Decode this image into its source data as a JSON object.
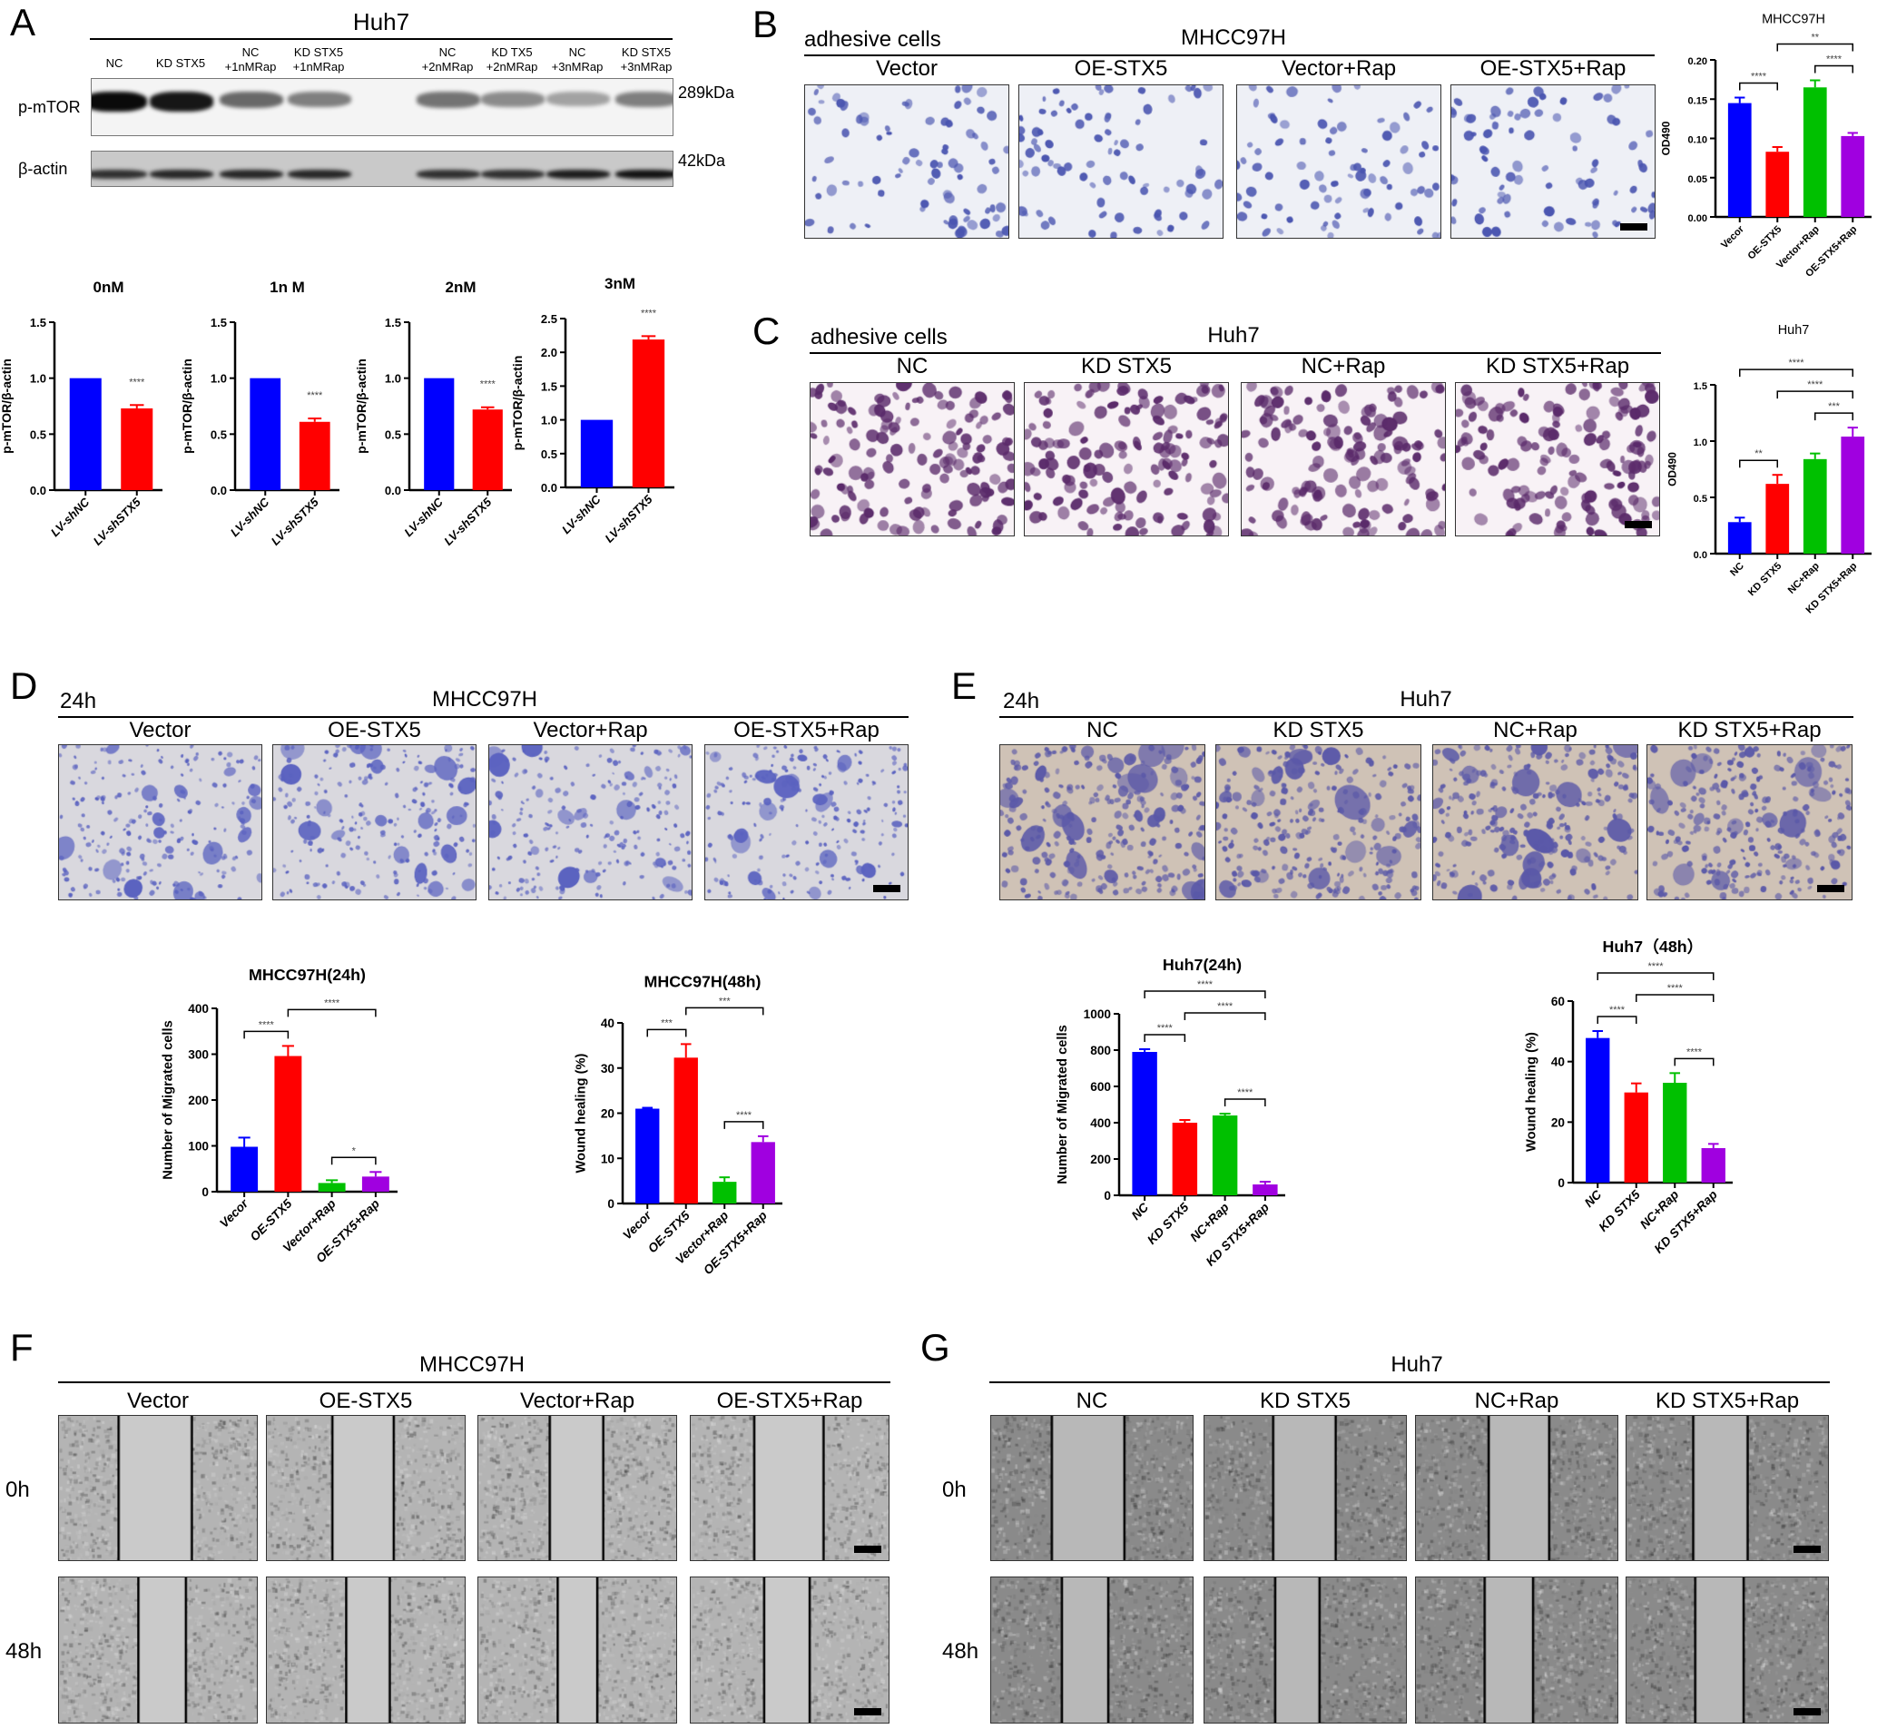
{
  "panels": {
    "A": {
      "label": "A",
      "title": "Huh7",
      "lanes": [
        "NC",
        "KD STX5",
        "NC\n+1nMRap",
        "KD STX5\n+1nMRap",
        "NC\n+2nMRap",
        "KD TX5\n+2nMRap",
        "NC\n+3nMRap",
        "KD STX5\n+3nMRap"
      ],
      "rows": [
        {
          "name": "p-mTOR",
          "size": "289kDa"
        },
        {
          "name": "β-actin",
          "size": "42kDa"
        }
      ]
    },
    "B": {
      "label": "B",
      "corner": "adhesive cells",
      "title": "MHCC97H",
      "columns": [
        "Vector",
        "OE-STX5",
        "Vector+Rap",
        "OE-STX5+Rap"
      ]
    },
    "C": {
      "label": "C",
      "corner": "adhesive cells",
      "title": "Huh7",
      "columns": [
        "NC",
        "KD STX5",
        "NC+Rap",
        "KD STX5+Rap"
      ]
    },
    "D": {
      "label": "D",
      "corner": "24h",
      "title": "MHCC97H",
      "columns": [
        "Vector",
        "OE-STX5",
        "Vector+Rap",
        "OE-STX5+Rap"
      ]
    },
    "E": {
      "label": "E",
      "corner": "24h",
      "title": "Huh7",
      "columns": [
        "NC",
        "KD STX5",
        "NC+Rap",
        "KD STX5+Rap"
      ]
    },
    "F": {
      "label": "F",
      "title": "MHCC97H",
      "columns": [
        "Vector",
        "OE-STX5",
        "Vector+Rap",
        "OE-STX5+Rap"
      ],
      "rows": [
        "0h",
        "48h"
      ]
    },
    "G": {
      "label": "G",
      "title": "Huh7",
      "columns": [
        "NC",
        "KD STX5",
        "NC+Rap",
        "KD STX5+Rap"
      ],
      "rows": [
        "0h",
        "48h"
      ]
    }
  },
  "colors": {
    "blue": "#0000ff",
    "red": "#ff0000",
    "green": "#00c000",
    "purple": "#a000e0"
  },
  "chart_data": [
    {
      "id": "A-0nM",
      "type": "bar",
      "title": "0nM",
      "ylabel": "p-mTOR/β-actin",
      "categories": [
        "LV-shNC",
        "LV-shSTX5"
      ],
      "values": [
        1.0,
        0.73
      ],
      "errors": [
        0,
        0.03
      ],
      "ylim": [
        0,
        1.5
      ],
      "yticks": [
        "0.0",
        "0.5",
        "1.0",
        "1.5"
      ],
      "colors": [
        "#0000ff",
        "#ff0000"
      ],
      "significance": [
        {
          "bar": 1,
          "label": "****"
        }
      ],
      "comparisons": []
    },
    {
      "id": "A-1nM",
      "type": "bar",
      "title": "1n  M",
      "ylabel": "p-mTOR/β-actin",
      "categories": [
        "LV-shNC",
        "LV-shSTX5"
      ],
      "values": [
        1.0,
        0.61
      ],
      "errors": [
        0,
        0.03
      ],
      "ylim": [
        0,
        1.5
      ],
      "yticks": [
        "0.0",
        "0.5",
        "1.0",
        "1.5"
      ],
      "colors": [
        "#0000ff",
        "#ff0000"
      ],
      "significance": [
        {
          "bar": 1,
          "label": "****"
        }
      ],
      "comparisons": []
    },
    {
      "id": "A-2nM",
      "type": "bar",
      "title": "2nM",
      "ylabel": "p-mTOR/β-actin",
      "categories": [
        "LV-shNC",
        "LV-shSTX5"
      ],
      "values": [
        1.0,
        0.72
      ],
      "errors": [
        0,
        0.02
      ],
      "ylim": [
        0,
        1.5
      ],
      "yticks": [
        "0.0",
        "0.5",
        "1.0",
        "1.5"
      ],
      "colors": [
        "#0000ff",
        "#ff0000"
      ],
      "significance": [
        {
          "bar": 1,
          "label": "****"
        }
      ],
      "comparisons": []
    },
    {
      "id": "A-3nM",
      "type": "bar",
      "title": "3nM",
      "ylabel": "p-mTOR/β-actin",
      "categories": [
        "LV-shNC",
        "LV-shSTX5"
      ],
      "values": [
        1.0,
        2.19
      ],
      "errors": [
        0,
        0.05
      ],
      "ylim": [
        0,
        2.5
      ],
      "yticks": [
        "0.0",
        "0.5",
        "1.0",
        "1.5",
        "2.0",
        "2.5"
      ],
      "colors": [
        "#0000ff",
        "#ff0000"
      ],
      "significance": [
        {
          "bar": 1,
          "label": "****"
        }
      ],
      "comparisons": []
    },
    {
      "id": "B-OD490",
      "type": "bar",
      "title": "MHCC97H",
      "ylabel": "OD490",
      "categories": [
        "Vecor",
        "OE-STX5",
        "Vector+Rap",
        "OE-STX5+Rap"
      ],
      "values": [
        0.145,
        0.083,
        0.165,
        0.103
      ],
      "errors": [
        0.007,
        0.006,
        0.009,
        0.004
      ],
      "ylim": [
        0,
        0.2
      ],
      "yticks": [
        "0.00",
        "0.05",
        "0.10",
        "0.15",
        "0.20"
      ],
      "colors": [
        "#0000ff",
        "#ff0000",
        "#00c000",
        "#a000e0"
      ],
      "significance": [],
      "comparisons": [
        {
          "from": 0,
          "to": 1,
          "label": "****"
        },
        {
          "from": 2,
          "to": 3,
          "label": "****"
        },
        {
          "from": 1,
          "to": 3,
          "label": "**"
        }
      ]
    },
    {
      "id": "C-OD490",
      "type": "bar",
      "title": "Huh7",
      "ylabel": "OD490",
      "categories": [
        "NC",
        "KD STX5",
        "NC+Rap",
        "KD STX5+Rap"
      ],
      "values": [
        0.28,
        0.62,
        0.84,
        1.04
      ],
      "errors": [
        0.04,
        0.08,
        0.05,
        0.08
      ],
      "ylim": [
        0,
        1.5
      ],
      "yticks": [
        "0.0",
        "0.5",
        "1.0",
        "1.5"
      ],
      "colors": [
        "#0000ff",
        "#ff0000",
        "#00c000",
        "#a000e0"
      ],
      "significance": [],
      "comparisons": [
        {
          "from": 0,
          "to": 1,
          "label": "**"
        },
        {
          "from": 2,
          "to": 3,
          "label": "***"
        },
        {
          "from": 1,
          "to": 3,
          "label": "****"
        },
        {
          "from": 0,
          "to": 3,
          "label": "****"
        }
      ]
    },
    {
      "id": "D-24h",
      "type": "bar",
      "title": "MHCC97H(24h)",
      "ylabel": "Number of Migrated cells",
      "categories": [
        "Vecor",
        "OE-STX5",
        "Vector+Rap",
        "OE-STX5+Rap"
      ],
      "values": [
        98,
        296,
        19,
        33
      ],
      "errors": [
        20,
        22,
        6,
        10
      ],
      "ylim": [
        0,
        400
      ],
      "yticks": [
        "0",
        "100",
        "200",
        "300",
        "400"
      ],
      "colors": [
        "#0000ff",
        "#ff0000",
        "#00c000",
        "#a000e0"
      ],
      "significance": [],
      "comparisons": [
        {
          "from": 0,
          "to": 1,
          "label": "****"
        },
        {
          "from": 2,
          "to": 3,
          "label": "*"
        },
        {
          "from": 1,
          "to": 3,
          "label": "****"
        }
      ]
    },
    {
      "id": "D-48h",
      "type": "bar",
      "title": "MHCC97H(48h)",
      "ylabel": "Wound healing (%)",
      "categories": [
        "Vecor",
        "OE-STX5",
        "Vector+Rap",
        "OE-STX5+Rap"
      ],
      "values": [
        21.0,
        32.3,
        4.8,
        13.6
      ],
      "errors": [
        0.2,
        3.0,
        1.0,
        1.3
      ],
      "ylim": [
        0,
        40
      ],
      "yticks": [
        "0",
        "10",
        "20",
        "30",
        "40"
      ],
      "colors": [
        "#0000ff",
        "#ff0000",
        "#00c000",
        "#a000e0"
      ],
      "significance": [],
      "comparisons": [
        {
          "from": 0,
          "to": 1,
          "label": "***"
        },
        {
          "from": 2,
          "to": 3,
          "label": "****"
        },
        {
          "from": 1,
          "to": 3,
          "label": "***"
        }
      ]
    },
    {
      "id": "E-24h",
      "type": "bar",
      "title": "Huh7(24h)",
      "ylabel": "Number of Migrated cells",
      "categories": [
        "NC",
        "KD STX5",
        "NC+Rap",
        "KD STX5+Rap"
      ],
      "values": [
        790,
        400,
        440,
        60
      ],
      "errors": [
        15,
        15,
        10,
        15
      ],
      "ylim": [
        0,
        1000
      ],
      "yticks": [
        "0",
        "200",
        "400",
        "600",
        "800",
        "1000"
      ],
      "colors": [
        "#0000ff",
        "#ff0000",
        "#00c000",
        "#a000e0"
      ],
      "significance": [],
      "comparisons": [
        {
          "from": 0,
          "to": 1,
          "label": "****"
        },
        {
          "from": 2,
          "to": 3,
          "label": "****"
        },
        {
          "from": 1,
          "to": 3,
          "label": "****"
        },
        {
          "from": 0,
          "to": 3,
          "label": "****"
        }
      ]
    },
    {
      "id": "E-48h",
      "type": "bar",
      "title": "Huh7（48h）",
      "ylabel": "Wound healing (%)",
      "categories": [
        "NC",
        "KD STX5",
        "NC+Rap",
        "KD STX5+Rap"
      ],
      "values": [
        47.8,
        29.8,
        33.0,
        11.4
      ],
      "errors": [
        2.3,
        3.0,
        3.2,
        1.4
      ],
      "ylim": [
        0,
        60
      ],
      "yticks": [
        "0",
        "20",
        "40",
        "60"
      ],
      "colors": [
        "#0000ff",
        "#ff0000",
        "#00c000",
        "#a000e0"
      ],
      "significance": [],
      "comparisons": [
        {
          "from": 0,
          "to": 1,
          "label": "****"
        },
        {
          "from": 2,
          "to": 3,
          "label": "****"
        },
        {
          "from": 1,
          "to": 3,
          "label": "****"
        },
        {
          "from": 0,
          "to": 3,
          "label": "****"
        }
      ]
    }
  ]
}
